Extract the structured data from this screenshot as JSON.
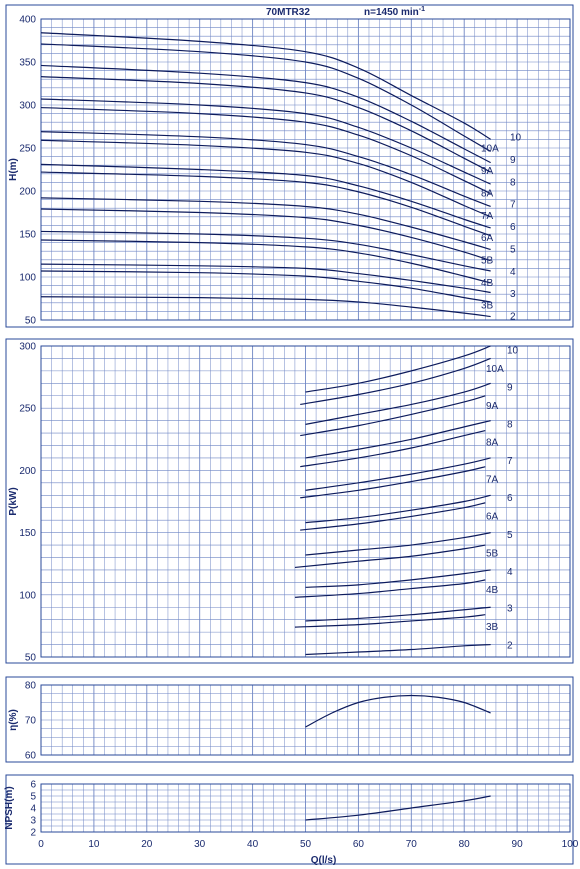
{
  "title": "70MTR32",
  "speed_label": "n=1450 min",
  "speed_exponent": "-1",
  "colors": {
    "frame": "#2a4a9a",
    "grid": "#6f86c4",
    "curve": "#0d1b5c",
    "text": "#1a2a6e"
  },
  "chart_data": [
    {
      "type": "line",
      "id": "head",
      "ylabel": "H(m)",
      "ylim": [
        50,
        400
      ],
      "yticks": [
        50,
        100,
        150,
        200,
        250,
        300,
        350,
        400
      ],
      "xlim": [
        0,
        100
      ],
      "series": [
        {
          "name": "10",
          "x": [
            0,
            30,
            50,
            60,
            70,
            80,
            85
          ],
          "y": [
            384,
            374,
            362,
            343,
            311,
            279,
            260
          ]
        },
        {
          "name": "10A",
          "x": [
            0,
            30,
            50,
            60,
            70,
            80,
            85
          ],
          "y": [
            371,
            362,
            350,
            331,
            300,
            264,
            246
          ]
        },
        {
          "name": "9",
          "x": [
            0,
            30,
            50,
            60,
            70,
            80,
            85
          ],
          "y": [
            346,
            337,
            326,
            309,
            281,
            249,
            233
          ]
        },
        {
          "name": "9A",
          "x": [
            0,
            30,
            50,
            60,
            70,
            80,
            85
          ],
          "y": [
            333,
            325,
            314,
            297,
            270,
            238,
            222
          ]
        },
        {
          "name": "8",
          "x": [
            0,
            30,
            50,
            60,
            70,
            80,
            85
          ],
          "y": [
            307,
            300,
            290,
            274,
            250,
            222,
            208
          ]
        },
        {
          "name": "8A",
          "x": [
            0,
            30,
            50,
            60,
            70,
            80,
            85
          ],
          "y": [
            297,
            290,
            280,
            265,
            241,
            212,
            197
          ]
        },
        {
          "name": "7",
          "x": [
            0,
            30,
            50,
            60,
            70,
            80,
            85
          ],
          "y": [
            269,
            263,
            254,
            240,
            219,
            194,
            182
          ]
        },
        {
          "name": "7A",
          "x": [
            0,
            30,
            50,
            60,
            70,
            80,
            85
          ],
          "y": [
            259,
            253,
            245,
            232,
            210,
            183,
            170
          ]
        },
        {
          "name": "6",
          "x": [
            0,
            30,
            50,
            60,
            70,
            80,
            85
          ],
          "y": [
            231,
            225,
            218,
            206,
            188,
            167,
            157
          ]
        },
        {
          "name": "6A",
          "x": [
            0,
            30,
            50,
            60,
            70,
            80,
            85
          ],
          "y": [
            222,
            217,
            210,
            199,
            181,
            159,
            148
          ]
        },
        {
          "name": "5",
          "x": [
            0,
            30,
            50,
            60,
            70,
            80,
            85
          ],
          "y": [
            192,
            188,
            182,
            173,
            158,
            141,
            132
          ]
        },
        {
          "name": "5B",
          "x": [
            0,
            30,
            50,
            60,
            70,
            80,
            85
          ],
          "y": [
            179,
            175,
            169,
            160,
            146,
            129,
            119
          ]
        },
        {
          "name": "4",
          "x": [
            0,
            30,
            50,
            60,
            70,
            80,
            85
          ],
          "y": [
            153,
            150,
            145,
            138,
            126,
            113,
            107
          ]
        },
        {
          "name": "4B",
          "x": [
            0,
            30,
            50,
            60,
            70,
            80,
            85
          ],
          "y": [
            143,
            140,
            135,
            128,
            116,
            101,
            93
          ]
        },
        {
          "name": "3",
          "x": [
            0,
            30,
            50,
            60,
            70,
            80,
            85
          ],
          "y": [
            115,
            113,
            110,
            104,
            96,
            87,
            82
          ]
        },
        {
          "name": "3B",
          "x": [
            0,
            30,
            50,
            60,
            70,
            80,
            85
          ],
          "y": [
            107,
            105,
            101,
            95,
            87,
            76,
            71
          ]
        },
        {
          "name": "2",
          "x": [
            0,
            30,
            50,
            60,
            70,
            80,
            85
          ],
          "y": [
            77,
            76,
            74,
            71,
            65,
            58,
            54
          ]
        }
      ],
      "label_order": [
        "10",
        "10A",
        "9",
        "9A",
        "8",
        "8A",
        "7",
        "7A",
        "6",
        "6A",
        "5",
        "5B",
        "4",
        "4B",
        "3",
        "3B",
        "2"
      ]
    },
    {
      "type": "line",
      "id": "power",
      "ylabel": "P(kW)",
      "ylim": [
        50,
        300
      ],
      "yticks": [
        50,
        100,
        150,
        200,
        250,
        300
      ],
      "xlim": [
        0,
        100
      ],
      "series": [
        {
          "name": "10",
          "x": [
            50,
            60,
            70,
            80,
            85
          ],
          "y": [
            263,
            270,
            280,
            292,
            300
          ]
        },
        {
          "name": "10A",
          "x": [
            49,
            60,
            70,
            80,
            85
          ],
          "y": [
            253,
            261,
            270,
            282,
            290
          ]
        },
        {
          "name": "9",
          "x": [
            50,
            60,
            70,
            80,
            85
          ],
          "y": [
            237,
            245,
            253,
            263,
            270
          ]
        },
        {
          "name": "9A",
          "x": [
            49,
            60,
            70,
            80,
            84
          ],
          "y": [
            228,
            236,
            245,
            255,
            260
          ]
        },
        {
          "name": "8",
          "x": [
            50,
            60,
            70,
            80,
            85
          ],
          "y": [
            210,
            217,
            225,
            235,
            240
          ]
        },
        {
          "name": "8A",
          "x": [
            49,
            60,
            70,
            80,
            84
          ],
          "y": [
            203,
            210,
            218,
            228,
            232
          ]
        },
        {
          "name": "7",
          "x": [
            50,
            60,
            70,
            80,
            85
          ],
          "y": [
            184,
            190,
            197,
            205,
            210
          ]
        },
        {
          "name": "7A",
          "x": [
            49,
            60,
            70,
            80,
            84
          ],
          "y": [
            178,
            184,
            191,
            199,
            203
          ]
        },
        {
          "name": "6",
          "x": [
            50,
            60,
            70,
            80,
            85
          ],
          "y": [
            158,
            162,
            168,
            175,
            180
          ]
        },
        {
          "name": "6A",
          "x": [
            49,
            60,
            70,
            80,
            84
          ],
          "y": [
            152,
            157,
            163,
            170,
            174
          ]
        },
        {
          "name": "5",
          "x": [
            50,
            60,
            70,
            80,
            85
          ],
          "y": [
            132,
            136,
            140,
            146,
            150
          ]
        },
        {
          "name": "5B",
          "x": [
            48,
            60,
            70,
            80,
            84
          ],
          "y": [
            122,
            127,
            131,
            137,
            140
          ]
        },
        {
          "name": "4",
          "x": [
            50,
            60,
            70,
            80,
            85
          ],
          "y": [
            106,
            108,
            112,
            117,
            120
          ]
        },
        {
          "name": "4B",
          "x": [
            48,
            60,
            70,
            80,
            84
          ],
          "y": [
            98,
            101,
            105,
            109,
            112
          ]
        },
        {
          "name": "3",
          "x": [
            50,
            60,
            70,
            80,
            85
          ],
          "y": [
            79,
            81,
            84,
            88,
            90
          ]
        },
        {
          "name": "3B",
          "x": [
            48,
            60,
            70,
            80,
            84
          ],
          "y": [
            74,
            76,
            79,
            82,
            84
          ]
        },
        {
          "name": "2",
          "x": [
            50,
            60,
            70,
            80,
            85
          ],
          "y": [
            52,
            54,
            56,
            59,
            60
          ]
        }
      ],
      "label_order": [
        "10",
        "10A",
        "9",
        "9A",
        "8",
        "8A",
        "7",
        "7A",
        "6",
        "6A",
        "5",
        "5B",
        "4",
        "4B",
        "3",
        "3B",
        "2"
      ]
    },
    {
      "type": "line",
      "id": "efficiency",
      "ylabel": "η(%)",
      "ylim": [
        60,
        80
      ],
      "yticks": [
        60,
        70,
        80
      ],
      "xlim": [
        0,
        100
      ],
      "series": [
        {
          "x": [
            50,
            55,
            60,
            65,
            70,
            75,
            80,
            85
          ],
          "y": [
            68,
            72,
            75,
            76.5,
            77,
            76.5,
            75,
            72
          ]
        }
      ]
    },
    {
      "type": "line",
      "id": "npsh",
      "ylabel": "NPSH(m)",
      "xlabel": "Q(l/s)",
      "ylim": [
        2,
        6
      ],
      "yticks": [
        2,
        3,
        4,
        5,
        6
      ],
      "xlim": [
        0,
        100
      ],
      "xticks": [
        0,
        10,
        20,
        30,
        40,
        50,
        60,
        70,
        80,
        90,
        100
      ],
      "series": [
        {
          "x": [
            50,
            60,
            70,
            80,
            85
          ],
          "y": [
            3.0,
            3.4,
            4.0,
            4.6,
            5.0
          ]
        }
      ]
    }
  ]
}
